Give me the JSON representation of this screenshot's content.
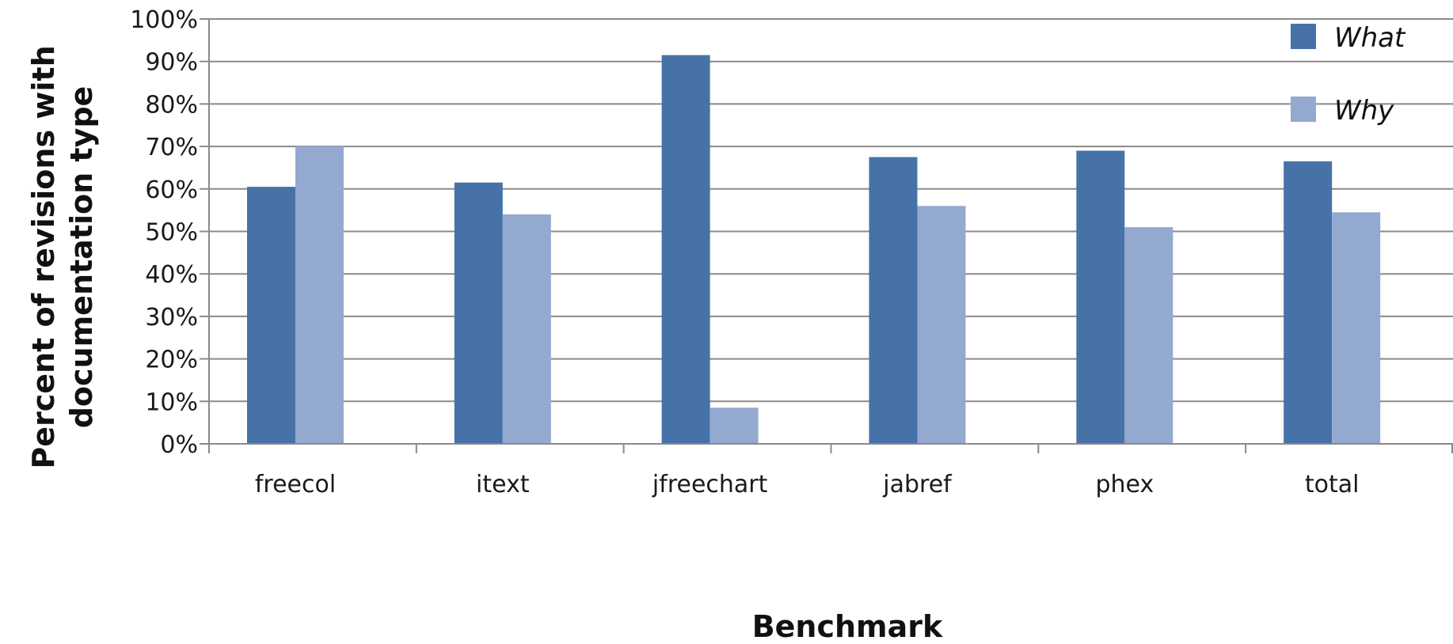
{
  "chart_data": {
    "type": "bar",
    "title": "",
    "xlabel": "Benchmark",
    "ylabel": "Percent of revisions with documentation type",
    "ylabel_lines": [
      "Percent of revisions with",
      "documentation type"
    ],
    "ylim": [
      0,
      100
    ],
    "yticks": [
      0,
      10,
      20,
      30,
      40,
      50,
      60,
      70,
      80,
      90,
      100
    ],
    "ytick_labels": [
      "0%",
      "10%",
      "20%",
      "30%",
      "40%",
      "50%",
      "60%",
      "70%",
      "80%",
      "90%",
      "100%"
    ],
    "grid": true,
    "legend_position": "top-right",
    "categories": [
      "freecol",
      "itext",
      "jfreechart",
      "jabref",
      "phex",
      "total"
    ],
    "series": [
      {
        "name": "What",
        "color": "#4672a8",
        "values": [
          60.5,
          61.5,
          91.5,
          67.5,
          69,
          66.5
        ]
      },
      {
        "name": "Why",
        "color": "#94a9d0",
        "values": [
          70,
          54,
          8.5,
          56,
          51,
          54.5
        ]
      }
    ]
  }
}
